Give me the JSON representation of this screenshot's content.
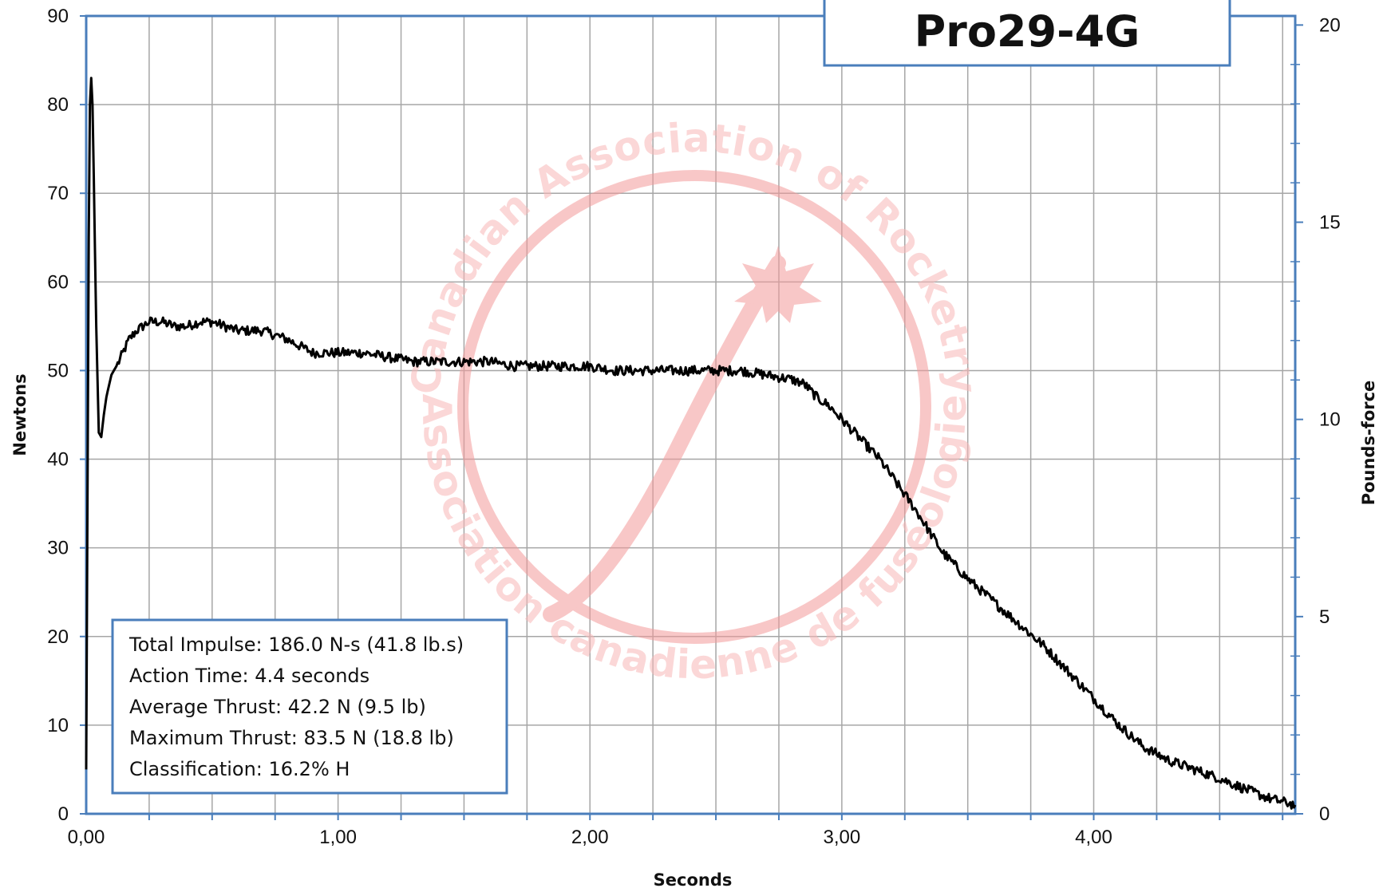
{
  "chart_data": {
    "type": "line",
    "title": "Pro29-4G",
    "xlabel": "Seconds",
    "ylabel": "Newtons",
    "y2label": "Pounds-force",
    "xlim": [
      0,
      4.8
    ],
    "ylim": [
      0,
      90
    ],
    "y2lim": [
      0,
      20.23
    ],
    "x_tick_labels": [
      "0,00",
      "1,00",
      "2,00",
      "3,00",
      "4,00"
    ],
    "x_tick_values": [
      0,
      1,
      2,
      3,
      4
    ],
    "y_tick_labels": [
      "0",
      "10",
      "20",
      "30",
      "40",
      "50",
      "60",
      "70",
      "80",
      "90"
    ],
    "y_tick_values": [
      0,
      10,
      20,
      30,
      40,
      50,
      60,
      70,
      80,
      90
    ],
    "y2_tick_labels": [
      "0",
      "5",
      "10",
      "15",
      "20"
    ],
    "y2_tick_values": [
      0,
      5,
      10,
      15,
      20
    ],
    "grid": true,
    "series": [
      {
        "x": [
          0.0,
          0.005,
          0.01,
          0.015,
          0.02,
          0.025,
          0.03,
          0.04,
          0.05,
          0.06,
          0.07,
          0.08,
          0.1,
          0.13,
          0.17,
          0.2,
          0.25,
          0.3,
          0.35,
          0.4,
          0.45,
          0.5,
          0.6,
          0.7,
          0.8,
          0.9,
          1.0,
          1.1,
          1.2,
          1.3,
          1.4,
          1.5,
          1.6,
          1.7,
          1.8,
          1.9,
          2.0,
          2.1,
          2.2,
          2.3,
          2.4,
          2.5,
          2.6,
          2.7,
          2.8,
          2.85,
          2.9,
          2.95,
          3.0,
          3.05,
          3.1,
          3.15,
          3.2,
          3.3,
          3.4,
          3.5,
          3.6,
          3.7,
          3.8,
          3.9,
          4.0,
          4.1,
          4.2,
          4.3,
          4.4,
          4.5,
          4.6,
          4.7,
          4.8
        ],
        "y": [
          5,
          35,
          65,
          80,
          83,
          80,
          72,
          55,
          43,
          42.5,
          45,
          47,
          49.5,
          51,
          53.5,
          54.5,
          55.5,
          55.5,
          55,
          55,
          55.5,
          55.5,
          54.5,
          54.5,
          53.5,
          52,
          52,
          52,
          51.5,
          51,
          51,
          51,
          51,
          50.5,
          50.5,
          50.5,
          50.5,
          50,
          50,
          50,
          50,
          50,
          50,
          49.5,
          49,
          48.5,
          47,
          46,
          44.5,
          43,
          41.5,
          40,
          38,
          34,
          29.5,
          26.5,
          24,
          21.5,
          19,
          16,
          13,
          10,
          7.5,
          6,
          5,
          4,
          2.8,
          1.7,
          1
        ]
      }
    ]
  },
  "stats": {
    "total_impulse": "Total Impulse: 186.0 N-s (41.8 lb.s)",
    "action_time": "Action Time: 4.4 seconds",
    "average_thrust": "Average Thrust: 42.2 N (9.5 lb)",
    "maximum_thrust": "Maximum Thrust: 83.5 N (18.8 lb)",
    "classification": "Classification: 16.2% H"
  },
  "watermark": {
    "top_text": "Canadian Association of Rocketry",
    "bottom_text": "Association canadienne de fuséologie",
    "color": "#f4a0a0"
  },
  "colors": {
    "frame": "#4a7ebb",
    "grid": "#a6a6a6",
    "line": "#000000"
  }
}
